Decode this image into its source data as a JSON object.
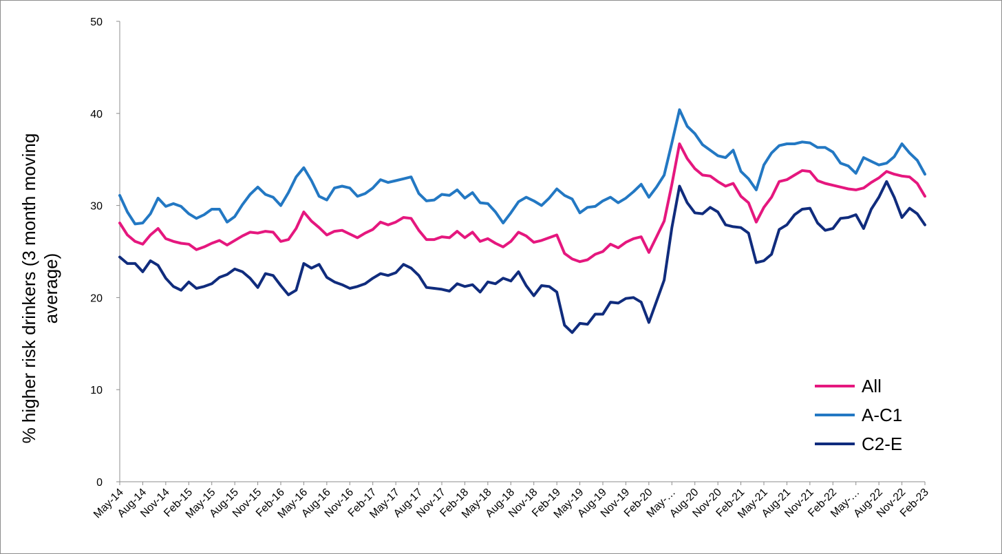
{
  "chart_data": {
    "type": "line",
    "title": "",
    "xlabel": "",
    "ylabel": "% higher risk drinkers (3 month moving average)",
    "ylabel_lines": [
      "% higher risk drinkers (3 month moving",
      "average)"
    ],
    "ylim": [
      0,
      50
    ],
    "yticks": [
      0,
      10,
      20,
      30,
      40,
      50
    ],
    "grid": false,
    "legend_position": "bottom-right",
    "x_tick_labels": [
      "May-14",
      "Aug-14",
      "Nov-14",
      "Feb-15",
      "May-15",
      "Aug-15",
      "Nov-15",
      "Feb-16",
      "May-16",
      "Aug-16",
      "Nov-16",
      "Feb-17",
      "May-17",
      "Aug-17",
      "Nov-17",
      "Feb-18",
      "May-18",
      "Aug-18",
      "Nov-18",
      "Feb-19",
      "May-19",
      "Aug-19",
      "Nov-19",
      "Feb-20",
      "May-…",
      "Aug-20",
      "Nov-20",
      "Feb-21",
      "May-21",
      "Aug-21",
      "Nov-21",
      "Feb-22",
      "May-…",
      "Aug-22",
      "Nov-22",
      "Feb-23"
    ],
    "series": [
      {
        "name": "All",
        "color": "#e5177e",
        "values": [
          28.1,
          26.8,
          26.1,
          25.8,
          26.8,
          27.5,
          26.4,
          26.1,
          25.9,
          25.8,
          25.2,
          25.5,
          25.9,
          26.2,
          25.7,
          26.2,
          26.7,
          27.1,
          27.0,
          27.2,
          27.1,
          26.1,
          26.3,
          27.5,
          29.3,
          28.3,
          27.6,
          26.8,
          27.2,
          27.3,
          26.9,
          26.5,
          27.0,
          27.4,
          28.2,
          27.9,
          28.2,
          28.7,
          28.6,
          27.3,
          26.3,
          26.3,
          26.6,
          26.5,
          27.2,
          26.5,
          27.1,
          26.1,
          26.4,
          25.9,
          25.5,
          26.1,
          27.1,
          26.7,
          26.0,
          26.2,
          26.5,
          26.8,
          24.8,
          24.2,
          23.9,
          24.1,
          24.7,
          25.0,
          25.8,
          25.4,
          26.0,
          26.4,
          26.6,
          24.9,
          26.6,
          28.3,
          32.3,
          36.7,
          35.1,
          34.0,
          33.3,
          33.2,
          32.6,
          32.1,
          32.4,
          31.0,
          30.3,
          28.2,
          29.8,
          30.9,
          32.6,
          32.8,
          33.3,
          33.8,
          33.7,
          32.7,
          32.4,
          32.2,
          32.0,
          31.8,
          31.7,
          31.9,
          32.5,
          33.0,
          33.7,
          33.4,
          33.2,
          33.1,
          32.4,
          31.0
        ]
      },
      {
        "name": "A-C1",
        "color": "#2378c3",
        "values": [
          31.1,
          29.3,
          28.0,
          28.1,
          29.1,
          30.8,
          29.9,
          30.2,
          29.9,
          29.1,
          28.6,
          29.0,
          29.6,
          29.6,
          28.2,
          28.8,
          30.1,
          31.2,
          32.0,
          31.2,
          30.9,
          30.0,
          31.4,
          33.1,
          34.1,
          32.7,
          31.0,
          30.6,
          31.9,
          32.1,
          31.9,
          31.0,
          31.3,
          31.9,
          32.8,
          32.5,
          32.7,
          32.9,
          33.1,
          31.3,
          30.5,
          30.6,
          31.2,
          31.1,
          31.7,
          30.8,
          31.4,
          30.3,
          30.2,
          29.3,
          28.1,
          29.2,
          30.4,
          30.9,
          30.5,
          30.0,
          30.8,
          31.8,
          31.1,
          30.7,
          29.2,
          29.8,
          29.9,
          30.5,
          30.9,
          30.3,
          30.8,
          31.5,
          32.3,
          30.9,
          32.0,
          33.3,
          36.8,
          40.4,
          38.6,
          37.8,
          36.6,
          36.0,
          35.4,
          35.2,
          36.0,
          33.7,
          32.9,
          31.7,
          34.4,
          35.7,
          36.5,
          36.7,
          36.7,
          36.9,
          36.8,
          36.3,
          36.3,
          35.8,
          34.6,
          34.3,
          33.5,
          35.2,
          34.8,
          34.4,
          34.6,
          35.3,
          36.7,
          35.7,
          34.9,
          33.4
        ]
      },
      {
        "name": "C2-E",
        "color": "#102c7d",
        "values": [
          24.4,
          23.7,
          23.7,
          22.8,
          24.0,
          23.5,
          22.1,
          21.2,
          20.8,
          21.7,
          21.0,
          21.2,
          21.5,
          22.2,
          22.5,
          23.1,
          22.8,
          22.1,
          21.1,
          22.6,
          22.4,
          21.3,
          20.3,
          20.8,
          23.7,
          23.2,
          23.6,
          22.2,
          21.7,
          21.4,
          21.0,
          21.2,
          21.5,
          22.1,
          22.6,
          22.4,
          22.7,
          23.6,
          23.2,
          22.4,
          21.1,
          21.0,
          20.9,
          20.7,
          21.5,
          21.2,
          21.4,
          20.6,
          21.7,
          21.5,
          22.1,
          21.8,
          22.8,
          21.3,
          20.2,
          21.3,
          21.2,
          20.6,
          17.0,
          16.2,
          17.2,
          17.1,
          18.2,
          18.2,
          19.5,
          19.4,
          19.9,
          20.0,
          19.5,
          17.3,
          19.6,
          21.9,
          27.6,
          32.1,
          30.3,
          29.2,
          29.1,
          29.8,
          29.3,
          27.9,
          27.7,
          27.6,
          27.0,
          23.8,
          24.0,
          24.7,
          27.4,
          27.9,
          29.0,
          29.6,
          29.7,
          28.1,
          27.3,
          27.5,
          28.6,
          28.7,
          29.0,
          27.5,
          29.6,
          30.9,
          32.6,
          30.9,
          28.7,
          29.7,
          29.1,
          27.9
        ]
      }
    ]
  }
}
